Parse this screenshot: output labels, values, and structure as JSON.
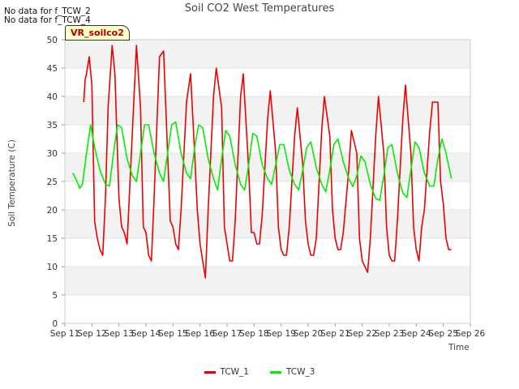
{
  "header": {
    "title": "Soil CO2 West Temperatures",
    "nodata_1": "No data for f_TCW_2",
    "nodata_2": "No data for f_TCW_4",
    "site_label": "VR_soilco2"
  },
  "colors": {
    "tcw1": "#ee0000",
    "tcw3": "#00ee00",
    "band": "#f2f2f2",
    "grid": "#dddddd"
  },
  "chart_data": {
    "type": "line",
    "title": "Soil CO2 West Temperatures",
    "xlabel": "Time",
    "ylabel": "Soil Temperature (C)",
    "xlim": [
      11,
      26
    ],
    "ylim": [
      0,
      50
    ],
    "x_tick_values": [
      11,
      12,
      13,
      14,
      15,
      16,
      17,
      18,
      19,
      20,
      21,
      22,
      23,
      24,
      25,
      26
    ],
    "x_tick_labels": [
      "Sep 11",
      "Sep 12",
      "Sep 13",
      "Sep 14",
      "Sep 15",
      "Sep 16",
      "Sep 17",
      "Sep 18",
      "Sep 19",
      "Sep 20",
      "Sep 21",
      "Sep 22",
      "Sep 23",
      "Sep 24",
      "Sep 25",
      "Sep 26"
    ],
    "y_ticks": [
      0,
      5,
      10,
      15,
      20,
      25,
      30,
      35,
      40,
      45,
      50
    ],
    "grid": true,
    "legend_position": "bottom",
    "series": [
      {
        "name": "TCW_1",
        "color": "#ee0000",
        "x": [
          11.7,
          11.75,
          11.8,
          11.9,
          12.0,
          12.1,
          12.2,
          12.3,
          12.4,
          12.5,
          12.6,
          12.75,
          12.85,
          13.0,
          13.1,
          13.2,
          13.3,
          13.5,
          13.65,
          13.8,
          13.9,
          14.0,
          14.1,
          14.2,
          14.3,
          14.5,
          14.65,
          14.8,
          14.9,
          15.0,
          15.1,
          15.2,
          15.3,
          15.5,
          15.65,
          15.8,
          15.9,
          16.0,
          16.1,
          16.2,
          16.3,
          16.5,
          16.6,
          16.8,
          16.9,
          17.0,
          17.1,
          17.2,
          17.3,
          17.5,
          17.6,
          17.8,
          17.9,
          18.0,
          18.1,
          18.2,
          18.3,
          18.5,
          18.6,
          18.8,
          18.9,
          19.0,
          19.1,
          19.2,
          19.3,
          19.5,
          19.6,
          19.8,
          19.9,
          20.0,
          20.1,
          20.2,
          20.3,
          20.5,
          20.6,
          20.8,
          20.9,
          21.0,
          21.1,
          21.2,
          21.3,
          21.5,
          21.6,
          21.8,
          21.9,
          22.0,
          22.1,
          22.2,
          22.3,
          22.5,
          22.6,
          22.8,
          22.9,
          23.0,
          23.1,
          23.2,
          23.3,
          23.5,
          23.6,
          23.8,
          23.9,
          24.0,
          24.1,
          24.2,
          24.3,
          24.5,
          24.6,
          24.8,
          24.9,
          25.0,
          25.1,
          25.2,
          25.3
        ],
        "y": [
          39,
          43,
          44,
          47,
          42,
          18,
          15,
          13,
          12,
          22,
          38,
          49,
          44,
          22,
          17,
          16,
          14,
          34,
          49,
          38,
          17,
          16,
          12,
          11,
          22,
          47,
          48,
          30,
          18,
          17,
          14,
          13,
          20,
          39,
          44,
          30,
          20,
          14,
          11,
          8,
          20,
          40,
          45,
          38,
          17,
          14,
          11,
          11,
          18,
          40,
          44,
          27,
          16,
          16,
          14,
          14,
          19,
          36,
          41,
          30,
          17,
          13,
          12,
          12,
          17,
          33,
          38,
          28,
          18,
          14,
          12,
          12,
          15,
          34,
          40,
          33,
          20,
          15,
          13,
          13,
          16,
          27,
          34,
          30,
          15,
          11,
          10,
          9,
          15,
          33,
          40,
          30,
          17,
          12,
          11,
          11,
          18,
          36,
          42,
          30,
          17,
          13,
          11,
          17,
          20,
          34,
          39,
          39,
          25,
          21,
          15,
          13,
          13
        ]
      },
      {
        "name": "TCW_3",
        "color": "#00ee00",
        "x": [
          11.3,
          11.45,
          11.55,
          11.65,
          11.8,
          11.95,
          12.1,
          12.3,
          12.5,
          12.65,
          12.8,
          12.95,
          13.1,
          13.3,
          13.5,
          13.65,
          13.8,
          13.95,
          14.1,
          14.3,
          14.5,
          14.65,
          14.8,
          14.95,
          15.1,
          15.3,
          15.5,
          15.65,
          15.8,
          15.95,
          16.1,
          16.3,
          16.5,
          16.65,
          16.8,
          16.95,
          17.1,
          17.3,
          17.5,
          17.65,
          17.8,
          17.95,
          18.1,
          18.3,
          18.5,
          18.65,
          18.8,
          18.95,
          19.1,
          19.3,
          19.5,
          19.65,
          19.8,
          19.95,
          20.1,
          20.3,
          20.5,
          20.65,
          20.8,
          20.95,
          21.1,
          21.3,
          21.5,
          21.65,
          21.8,
          21.95,
          22.1,
          22.3,
          22.5,
          22.65,
          22.8,
          22.95,
          23.1,
          23.3,
          23.5,
          23.65,
          23.8,
          23.95,
          24.1,
          24.3,
          24.5,
          24.65,
          24.8,
          24.95,
          25.1,
          25.3
        ],
        "y": [
          26.5,
          25,
          23.8,
          24.5,
          30,
          35,
          31,
          27,
          24.5,
          24.2,
          30,
          35,
          34.5,
          29,
          26,
          25,
          30,
          35,
          35,
          30,
          26.5,
          25,
          30,
          35,
          35.5,
          30,
          26.5,
          25.5,
          31,
          35,
          34.5,
          29,
          25.5,
          23.5,
          29,
          34,
          33,
          28,
          24.5,
          23.5,
          28,
          33.5,
          33,
          28,
          25.5,
          24.5,
          28,
          31.5,
          31.5,
          27,
          24.5,
          23.5,
          27,
          31,
          32,
          27.5,
          24.5,
          23.2,
          27,
          31.5,
          32.5,
          28.5,
          25.5,
          24.1,
          26,
          29.5,
          28.5,
          24.5,
          22,
          21.7,
          26,
          31,
          31.5,
          26.5,
          23,
          22.2,
          27,
          32,
          31,
          26.5,
          24.2,
          24.2,
          29,
          32.5,
          30,
          25.5
        ]
      }
    ]
  }
}
